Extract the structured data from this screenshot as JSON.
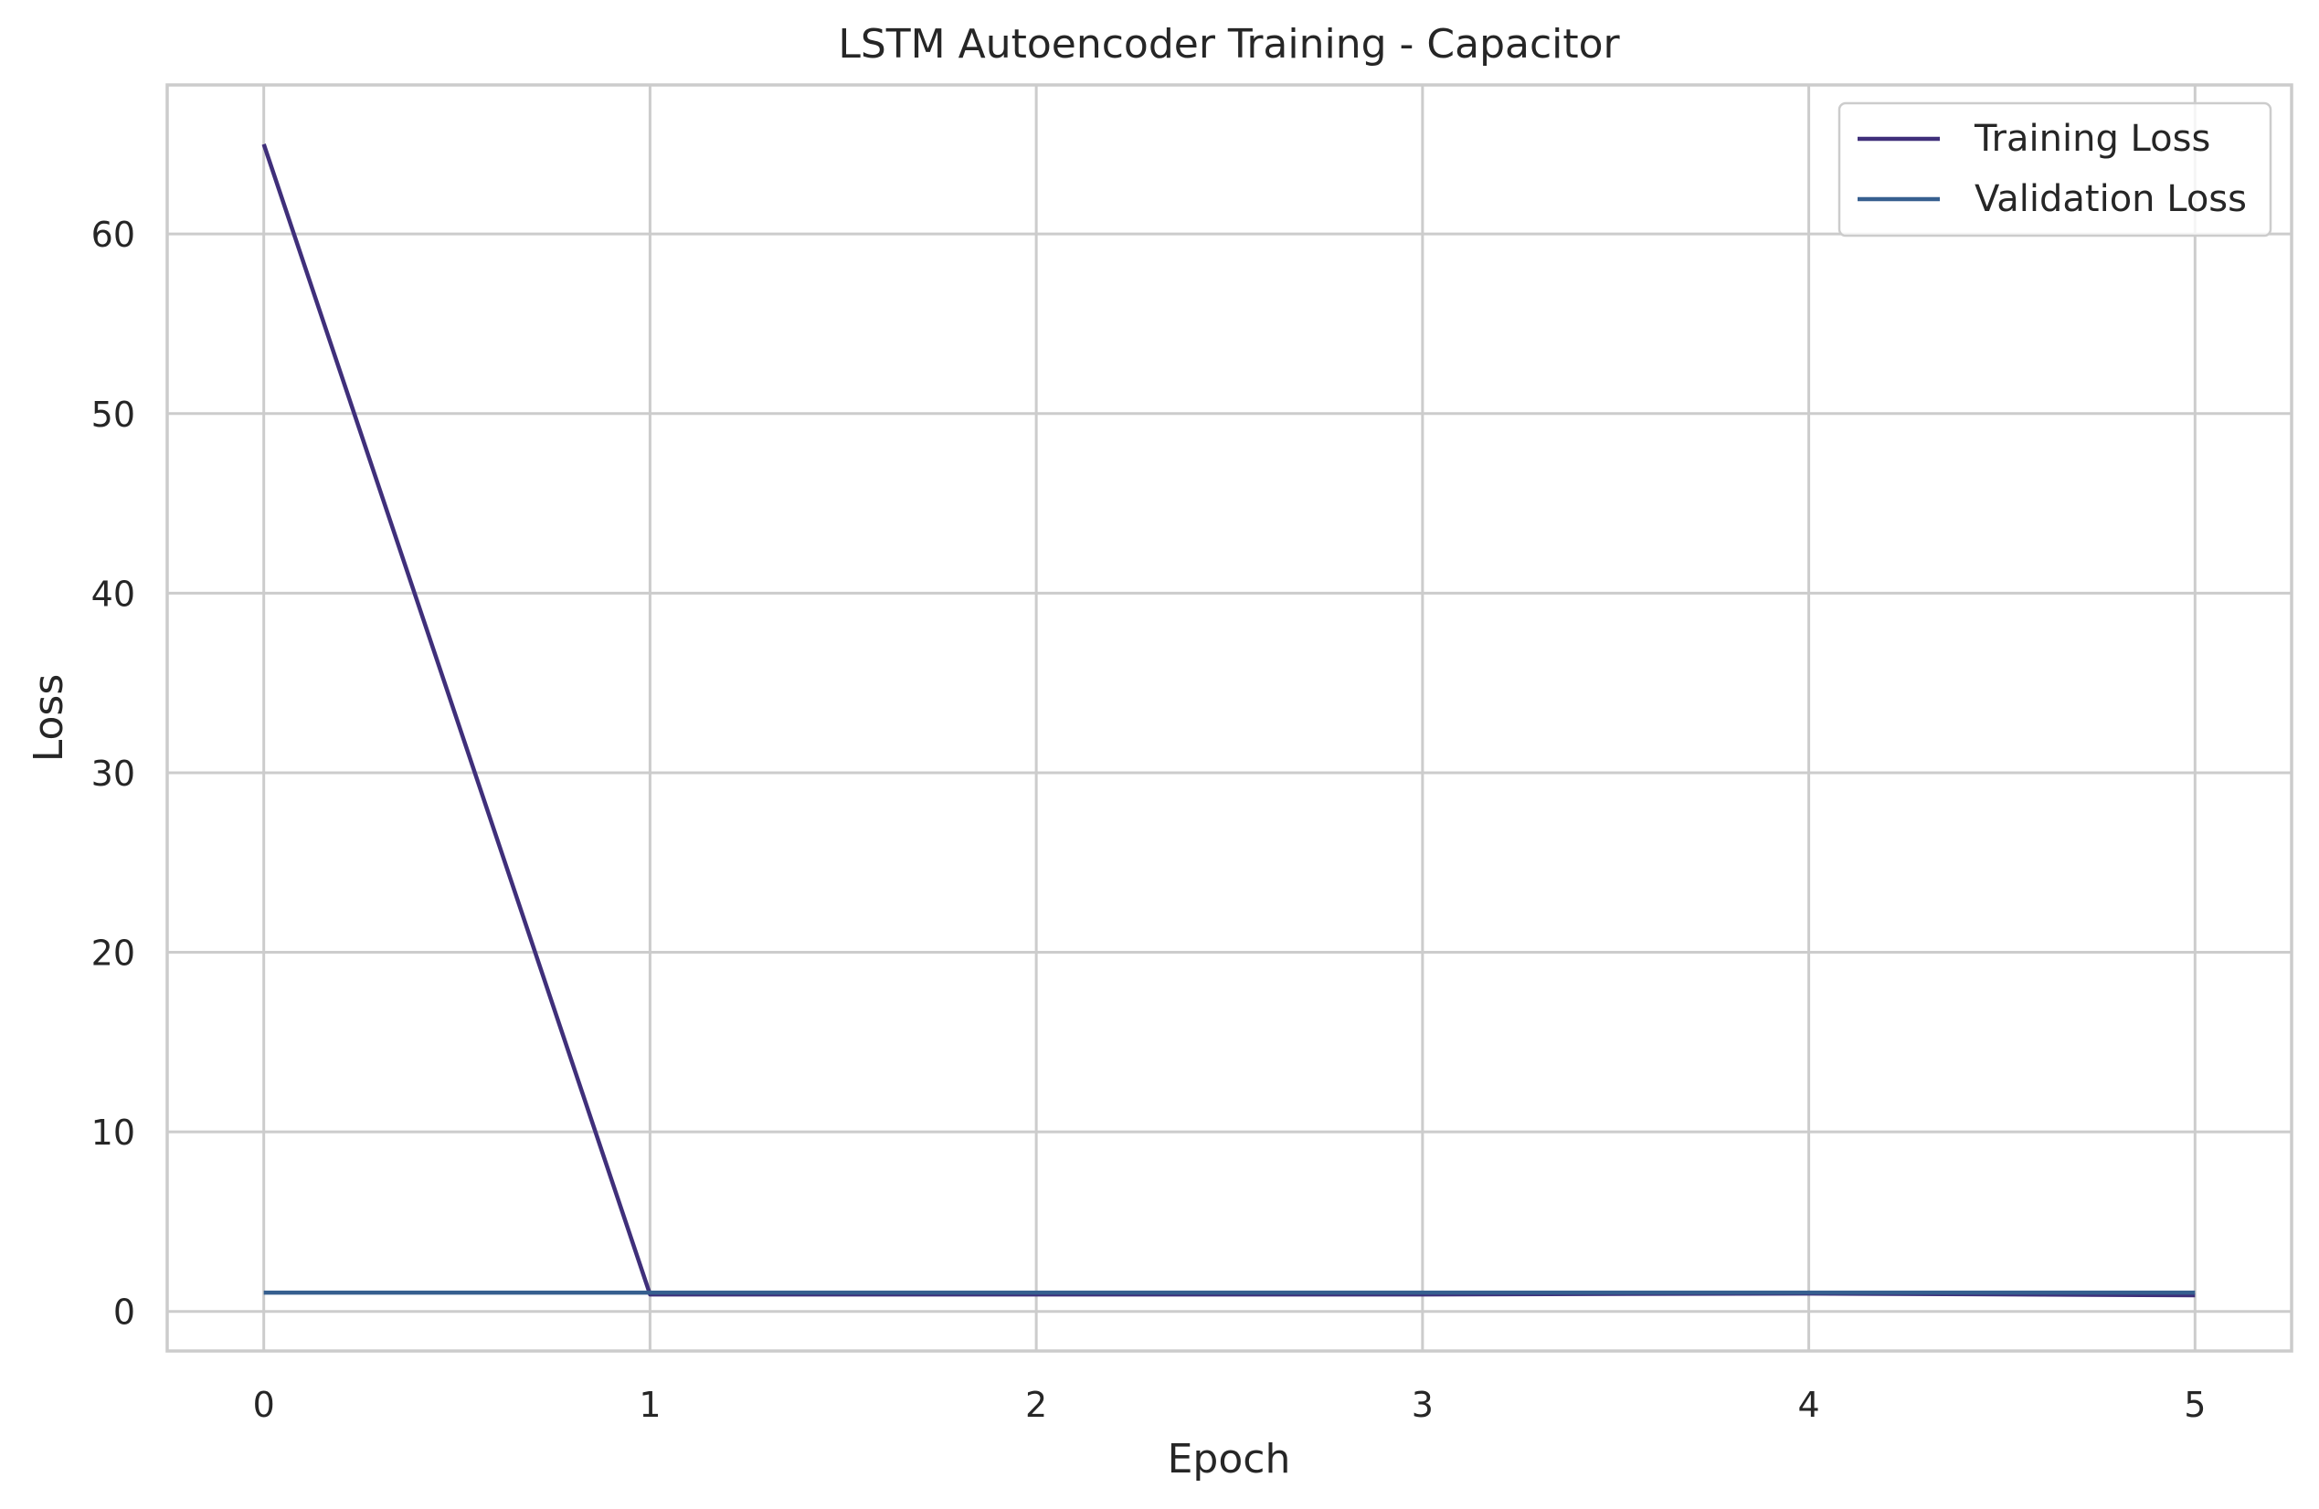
{
  "chart_data": {
    "type": "line",
    "title": "LSTM Autoencoder Training - Capacitor",
    "xlabel": "Epoch",
    "ylabel": "Loss",
    "x": [
      0,
      1,
      2,
      3,
      4,
      5
    ],
    "xticks": [
      "0",
      "1",
      "2",
      "3",
      "4",
      "5"
    ],
    "yticks": [
      "0",
      "10",
      "20",
      "30",
      "40",
      "50",
      "60"
    ],
    "xlim": [
      -0.25,
      5.25
    ],
    "ylim": [
      -2.2,
      68.3
    ],
    "grid": true,
    "legend_position": "top-right",
    "series": [
      {
        "name": "Training Loss",
        "color": "#3f2f7a",
        "values": [
          65.0,
          0.95,
          0.95,
          0.95,
          1.0,
          0.9
        ]
      },
      {
        "name": "Validation Loss",
        "color": "#365f8f",
        "values": [
          1.05,
          1.05,
          1.05,
          1.05,
          1.05,
          1.05
        ]
      }
    ]
  }
}
